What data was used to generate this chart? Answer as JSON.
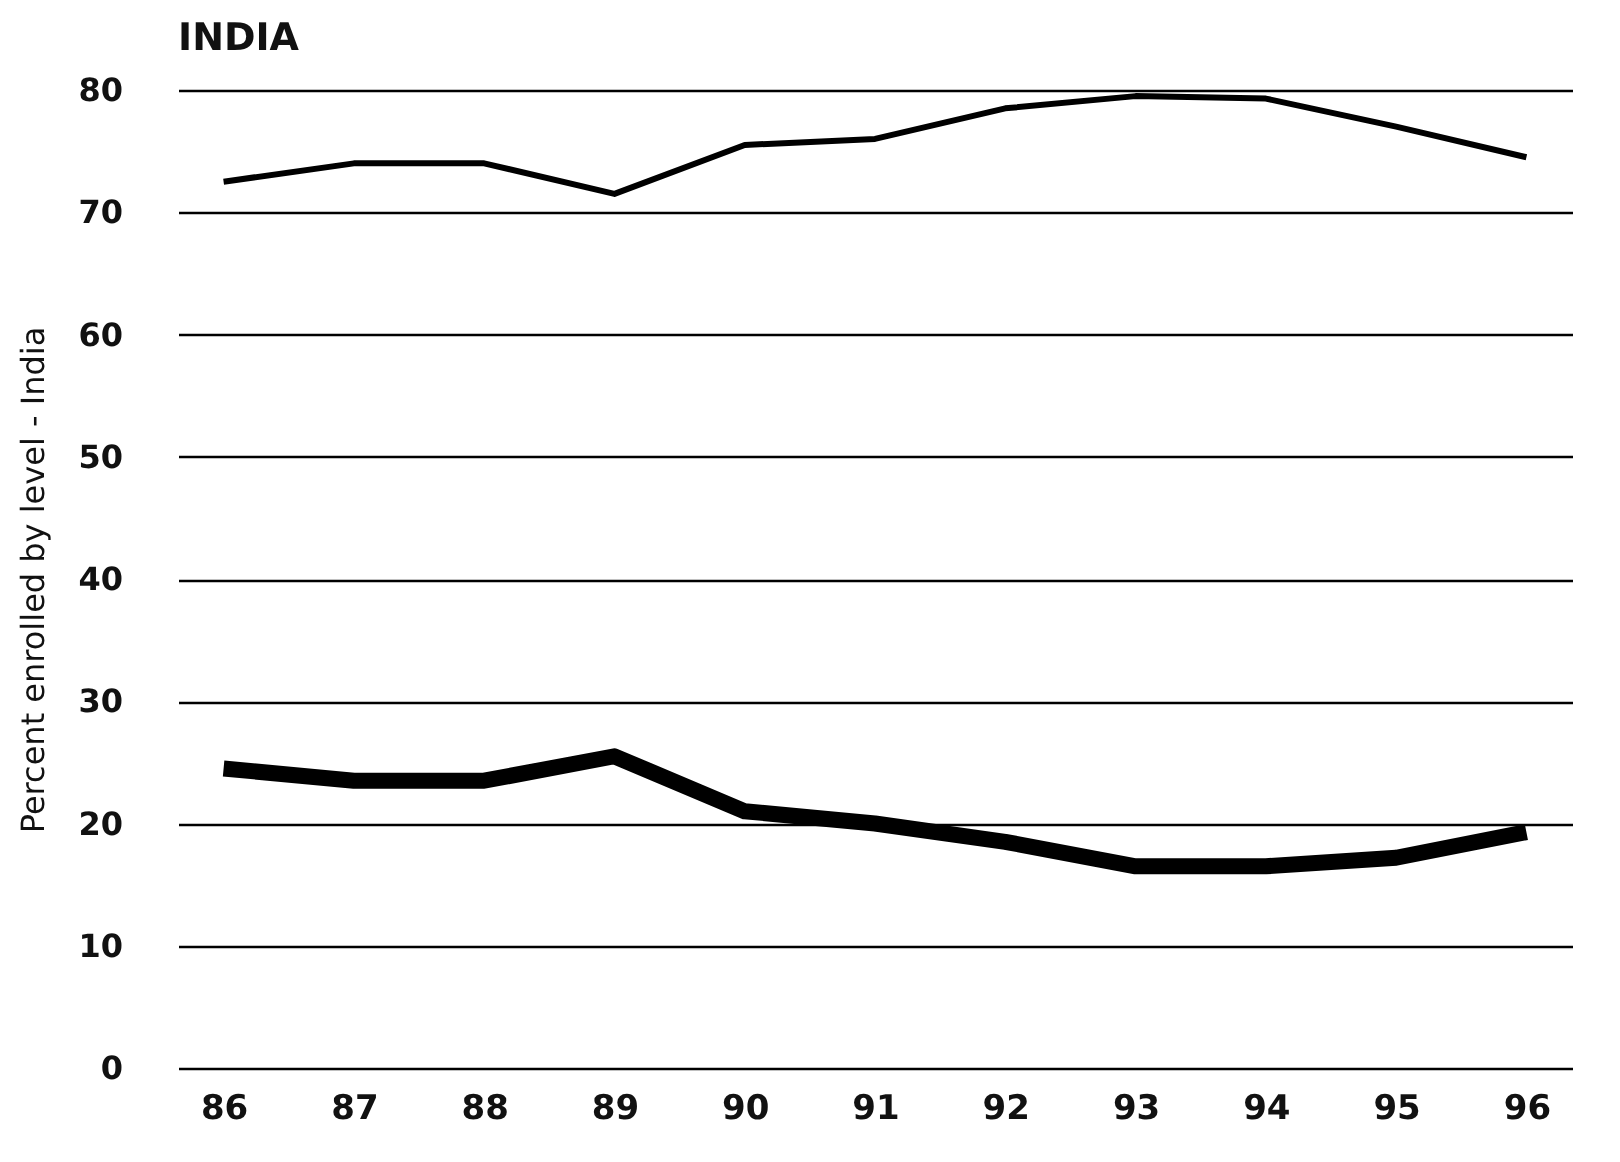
{
  "chart_data": {
    "type": "line",
    "title": "INDIA",
    "ylabel": "Percent enrolled by level - India",
    "categories": [
      "86",
      "87",
      "88",
      "89",
      "90",
      "91",
      "92",
      "93",
      "94",
      "95",
      "96"
    ],
    "series": [
      {
        "color": "#000000",
        "values": [
          72.5,
          74,
          74,
          71.5,
          75.5,
          76,
          78.5,
          79.5,
          79.3,
          77,
          74.5
        ]
      },
      {
        "color": "#000000",
        "values": [
          24.5,
          23.5,
          23.5,
          25.5,
          21,
          20,
          18.5,
          16.5,
          16.5,
          17.2,
          19.3
        ]
      }
    ],
    "ylim": [
      0,
      80
    ],
    "yticks": [
      0,
      10,
      20,
      30,
      40,
      50,
      60,
      70,
      80
    ],
    "grid": "y",
    "legend": false
  }
}
